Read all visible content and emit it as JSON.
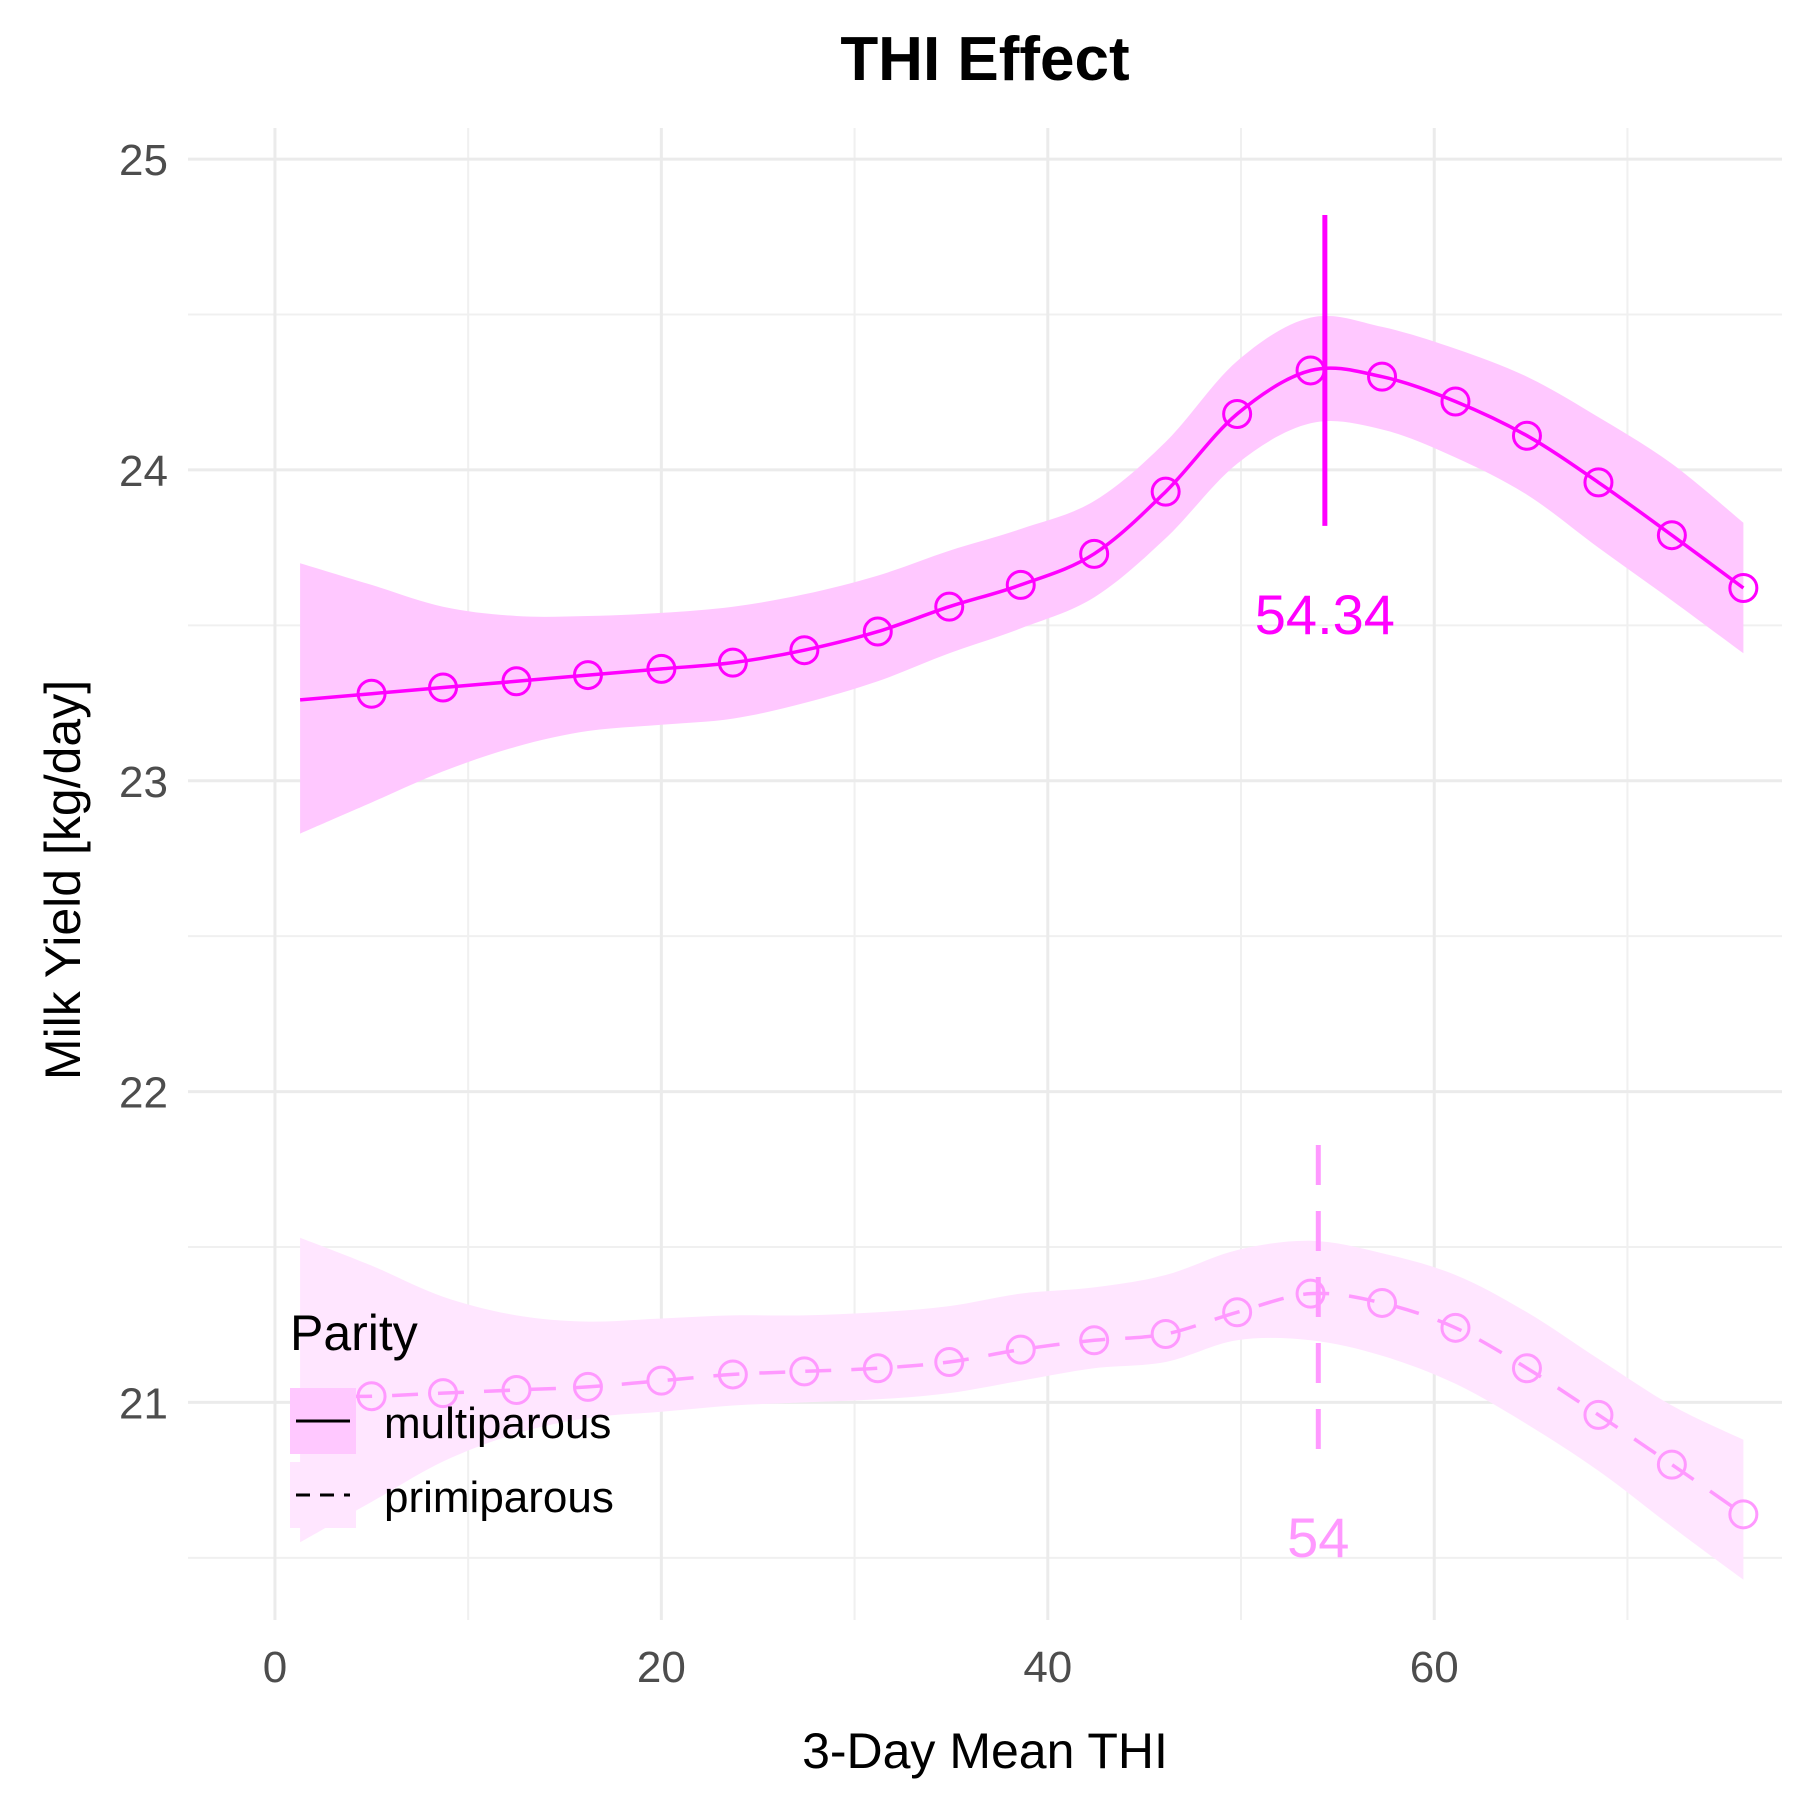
{
  "chart_data": {
    "type": "line",
    "title": "THI Effect",
    "xlabel": "3-Day Mean THI",
    "ylabel": "Milk Yield [kg/day]",
    "xlim": [
      -4.5,
      78
    ],
    "ylim": [
      20.3,
      25.1
    ],
    "x_ticks": [
      0,
      20,
      40,
      60
    ],
    "y_ticks": [
      21,
      22,
      23,
      24,
      25
    ],
    "grid": true,
    "legend": {
      "title": "Parity",
      "position": "bottom-left",
      "entries": [
        "multiparous",
        "primiparous"
      ]
    },
    "series": [
      {
        "name": "multiparous",
        "line_style": "solid",
        "color": "#FF00FF",
        "ribbon_color": "#FFC8FF",
        "curve": {
          "x": [
            1.3,
            5,
            8.7,
            12.5,
            16.2,
            20,
            23.7,
            27.4,
            31.2,
            34.9,
            38.6,
            42.4,
            46.1,
            49.8,
            53.6,
            57.3,
            61.1,
            64.8,
            68.5,
            72.3,
            76
          ],
          "y": [
            23.26,
            23.28,
            23.3,
            23.32,
            23.34,
            23.36,
            23.38,
            23.42,
            23.48,
            23.56,
            23.63,
            23.73,
            23.93,
            24.18,
            24.32,
            24.3,
            24.22,
            24.11,
            23.96,
            23.79,
            23.62
          ],
          "lower": [
            22.83,
            22.93,
            23.03,
            23.11,
            23.16,
            23.18,
            23.2,
            23.25,
            23.32,
            23.41,
            23.49,
            23.59,
            23.78,
            24.02,
            24.15,
            24.13,
            24.04,
            23.92,
            23.75,
            23.58,
            23.41
          ],
          "upper": [
            23.7,
            23.63,
            23.56,
            23.53,
            23.53,
            23.54,
            23.56,
            23.6,
            23.66,
            23.74,
            23.81,
            23.9,
            24.09,
            24.35,
            24.49,
            24.46,
            24.39,
            24.3,
            24.17,
            24.02,
            23.83
          ]
        },
        "points_x": [
          5,
          8.7,
          12.5,
          16.2,
          20,
          23.7,
          27.4,
          31.2,
          34.9,
          38.6,
          42.4,
          46.1,
          49.8,
          53.6,
          57.3,
          61.1,
          64.8,
          68.5,
          72.3,
          76
        ],
        "points_y": [
          23.28,
          23.3,
          23.32,
          23.34,
          23.36,
          23.38,
          23.42,
          23.48,
          23.56,
          23.63,
          23.73,
          23.93,
          24.18,
          24.32,
          24.3,
          24.22,
          24.11,
          23.96,
          23.79,
          23.62
        ],
        "peak_x": 54.34,
        "peak_label": "54.34",
        "peak_segment_y": [
          23.82,
          24.82
        ]
      },
      {
        "name": "primiparous",
        "line_style": "dashed",
        "color": "#FF99FF",
        "ribbon_color": "#FFE6FF",
        "curve": {
          "x": [
            1.3,
            5,
            8.7,
            12.5,
            16.2,
            20,
            23.7,
            27.4,
            31.2,
            34.9,
            38.6,
            42.4,
            46.1,
            49.8,
            53.6,
            57.3,
            61.1,
            64.8,
            68.5,
            72.3,
            76
          ],
          "y": [
            21.02,
            21.02,
            21.03,
            21.04,
            21.05,
            21.07,
            21.09,
            21.1,
            21.11,
            21.13,
            21.17,
            21.2,
            21.22,
            21.29,
            21.35,
            21.32,
            21.24,
            21.11,
            20.96,
            20.8,
            20.64
          ],
          "lower": [
            20.55,
            20.68,
            20.81,
            20.9,
            20.95,
            20.97,
            20.99,
            21.0,
            21.01,
            21.03,
            21.07,
            21.11,
            21.13,
            21.2,
            21.2,
            21.15,
            21.06,
            20.93,
            20.78,
            20.6,
            20.43
          ],
          "upper": [
            21.53,
            21.44,
            21.34,
            21.28,
            21.26,
            21.27,
            21.28,
            21.28,
            21.29,
            21.31,
            21.35,
            21.37,
            21.41,
            21.49,
            21.52,
            21.48,
            21.41,
            21.29,
            21.14,
            20.99,
            20.88
          ]
        },
        "points_x": [
          5,
          8.7,
          12.5,
          16.2,
          20,
          23.7,
          27.4,
          31.2,
          34.9,
          38.6,
          42.4,
          46.1,
          49.8,
          53.6,
          57.3,
          61.1,
          64.8,
          68.5,
          72.3,
          76
        ],
        "points_y": [
          21.02,
          21.03,
          21.04,
          21.05,
          21.07,
          21.09,
          21.1,
          21.11,
          21.13,
          21.17,
          21.2,
          21.22,
          21.29,
          21.35,
          21.32,
          21.24,
          21.11,
          20.96,
          20.8,
          20.64
        ],
        "peak_x": 54,
        "peak_label": "54",
        "peak_segment_y": [
          20.85,
          21.85
        ]
      }
    ]
  }
}
